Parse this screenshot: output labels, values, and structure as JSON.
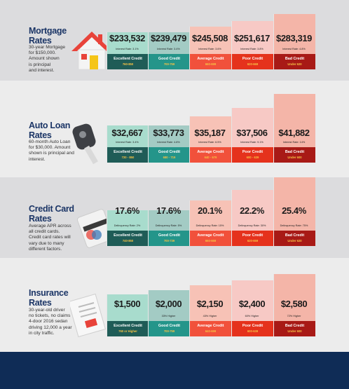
{
  "sections": [
    {
      "title": "Mortgage\nRates",
      "desc": "30-year Mortgage\nfor $150,000.\nAmount shown\nis principal\nand interest.",
      "icon": "house-icon",
      "tiers": [
        {
          "value": "$233,532",
          "sub": "Interest Rate: 3.1%",
          "label": "Excellent Credit",
          "range": "760-850"
        },
        {
          "value": "$239,479",
          "sub": "Interest Rate: 3.4%",
          "label": "Good Credit",
          "range": "700-759"
        },
        {
          "value": "$245,508",
          "sub": "Interest Rate: 3.6%",
          "label": "Average Credit",
          "range": "660-699"
        },
        {
          "value": "$251,617",
          "sub": "Interest Rate: 3.8%",
          "label": "Poor Credit",
          "range": "620-669"
        },
        {
          "value": "$283,319",
          "sub": "Interest Rate: 4.8%",
          "label": "Bad Credit",
          "range": "Under 620"
        }
      ]
    },
    {
      "title": "Auto Loan\nRates",
      "desc": "60-month Auto Loan\nfor $30,000. Amount\nshown is principal and\ninterest.",
      "icon": "car-key-icon",
      "tiers": [
        {
          "value": "$32,667",
          "sub": "Interest Rate: 3.4%",
          "label": "Excellent Credit",
          "range": "720 - 850"
        },
        {
          "value": "$33,773",
          "sub": "Interest Rate: 4.8%",
          "label": "Good Credit",
          "range": "680 - 719"
        },
        {
          "value": "$35,187",
          "sub": "Interest Rate: 6.5%",
          "label": "Average Credit",
          "range": "640 - 679"
        },
        {
          "value": "$37,506",
          "sub": "Interest Rate: 9.1%",
          "label": "Poor Credit",
          "range": "600 - 639"
        },
        {
          "value": "$41,882",
          "sub": "Interest Rate: 14%",
          "label": "Bad Credit",
          "range": "Under 600"
        }
      ]
    },
    {
      "title": "Credit Card\nRates",
      "desc": "Average APR across\nall credit cards.\nCredit card rates will\nvary due to many\ndifferent factors.",
      "icon": "credit-card-icon",
      "tiers": [
        {
          "value": "17.6%",
          "sub": "Delinquency Rate: 2%",
          "label": "Excellent Credit",
          "range": "740-850"
        },
        {
          "value": "17.6%",
          "sub": "Delinquency Rate: 5%",
          "label": "Good Credit",
          "range": "700-739"
        },
        {
          "value": "20.1%",
          "sub": "Delinquency Rate: 15%",
          "label": "Average Credit",
          "range": "660-669"
        },
        {
          "value": "22.2%",
          "sub": "Delinquency Rate: 30%",
          "label": "Poor Credit",
          "range": "620-659"
        },
        {
          "value": "25.4%",
          "sub": "Delinquency Rate: 75%",
          "label": "Bad Credit",
          "range": "Under 620"
        }
      ]
    },
    {
      "title": "Insurance\nRates",
      "desc": "30-year-old driver\nno tickets, no claims\n4-door 2016 sedan\ndriving 12,000 a year\nin city traffic.",
      "icon": "insurance-document-icon",
      "tiers": [
        {
          "value": "$1,500",
          "sub": "",
          "label": "Excellent Credit",
          "range": "760 or Higher"
        },
        {
          "value": "$2,000",
          "sub": "33% Higher",
          "label": "Good Credit",
          "range": "700-759"
        },
        {
          "value": "$2,150",
          "sub": "43% Higher",
          "label": "Average Credit",
          "range": "640-699"
        },
        {
          "value": "$2,400",
          "sub": "60% Higher",
          "label": "Poor Credit",
          "range": "600-639"
        },
        {
          "value": "$2,580",
          "sub": "72% Higher",
          "label": "Bad Credit",
          "range": "Under 600"
        }
      ]
    }
  ],
  "colors": {
    "tier_top": [
      "#a8dccd",
      "#a3cbc4",
      "#f7c2b6",
      "#f7c9c5",
      "#f4b5a8"
    ],
    "tier_bottom": [
      "#1f5c57",
      "#24958a",
      "#f1513b",
      "#e5321c",
      "#a81a16"
    ],
    "title": "#1b3566",
    "footer": "#0f2c56"
  }
}
